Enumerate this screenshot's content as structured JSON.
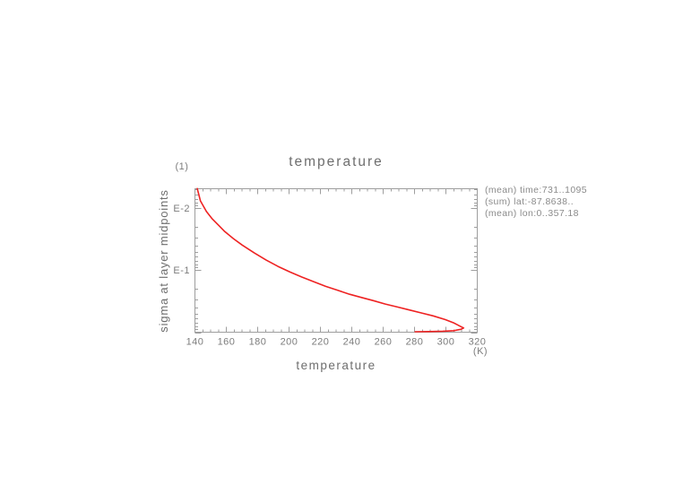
{
  "page": {
    "background": "#ffffff"
  },
  "chart_data": {
    "type": "line",
    "title": "temperature",
    "xlabel": "temperature",
    "x_unit": "(K)",
    "ylabel": "sigma at layer midpoints",
    "y_unit": "(1)",
    "x_domain": [
      140,
      320
    ],
    "x_ticks": [
      140,
      160,
      180,
      200,
      220,
      240,
      260,
      280,
      300,
      320
    ],
    "x_minor_step": 5,
    "y_scale": "log",
    "y_domain_top": 0.00484,
    "y_domain_bottom": 1.0,
    "y_ticks": [
      {
        "label": "E-2",
        "value": 0.01
      },
      {
        "label": "E-1",
        "value": 0.1
      }
    ],
    "grid": false,
    "legend": "none",
    "annotations": [
      "(mean) time:731..1095",
      "(sum) lat:-87.8638..",
      "(mean) lon:0..357.18"
    ],
    "colors": {
      "curve": "#ee2222",
      "axis": "#9e9e9e",
      "tick_text": "#7c7c7c",
      "label_text": "#6e6e6e"
    },
    "series": [
      {
        "name": "temperature",
        "color": "#ee2222",
        "points_format": [
          "temperature_K",
          "sigma"
        ],
        "points": [
          [
            141.5,
            0.0048
          ],
          [
            143.5,
            0.0076
          ],
          [
            147.3,
            0.0113
          ],
          [
            151.1,
            0.0149
          ],
          [
            154.9,
            0.0186
          ],
          [
            158.7,
            0.0233
          ],
          [
            164.4,
            0.0308
          ],
          [
            170.1,
            0.0392
          ],
          [
            177.8,
            0.0525
          ],
          [
            185.4,
            0.0686
          ],
          [
            192.9,
            0.0866
          ],
          [
            200.6,
            0.107
          ],
          [
            208.2,
            0.129
          ],
          [
            215.8,
            0.154
          ],
          [
            223.4,
            0.182
          ],
          [
            231.0,
            0.211
          ],
          [
            238.6,
            0.244
          ],
          [
            246.2,
            0.275
          ],
          [
            253.8,
            0.31
          ],
          [
            261.4,
            0.351
          ],
          [
            269.1,
            0.392
          ],
          [
            276.7,
            0.437
          ],
          [
            284.3,
            0.489
          ],
          [
            291.9,
            0.545
          ],
          [
            299.5,
            0.625
          ],
          [
            305.2,
            0.713
          ],
          [
            309.0,
            0.8
          ],
          [
            311.3,
            0.855
          ],
          [
            309.5,
            0.9
          ],
          [
            305.0,
            0.945
          ],
          [
            298.0,
            0.965
          ],
          [
            289.0,
            0.978
          ],
          [
            280.4,
            0.985
          ]
        ]
      }
    ]
  }
}
